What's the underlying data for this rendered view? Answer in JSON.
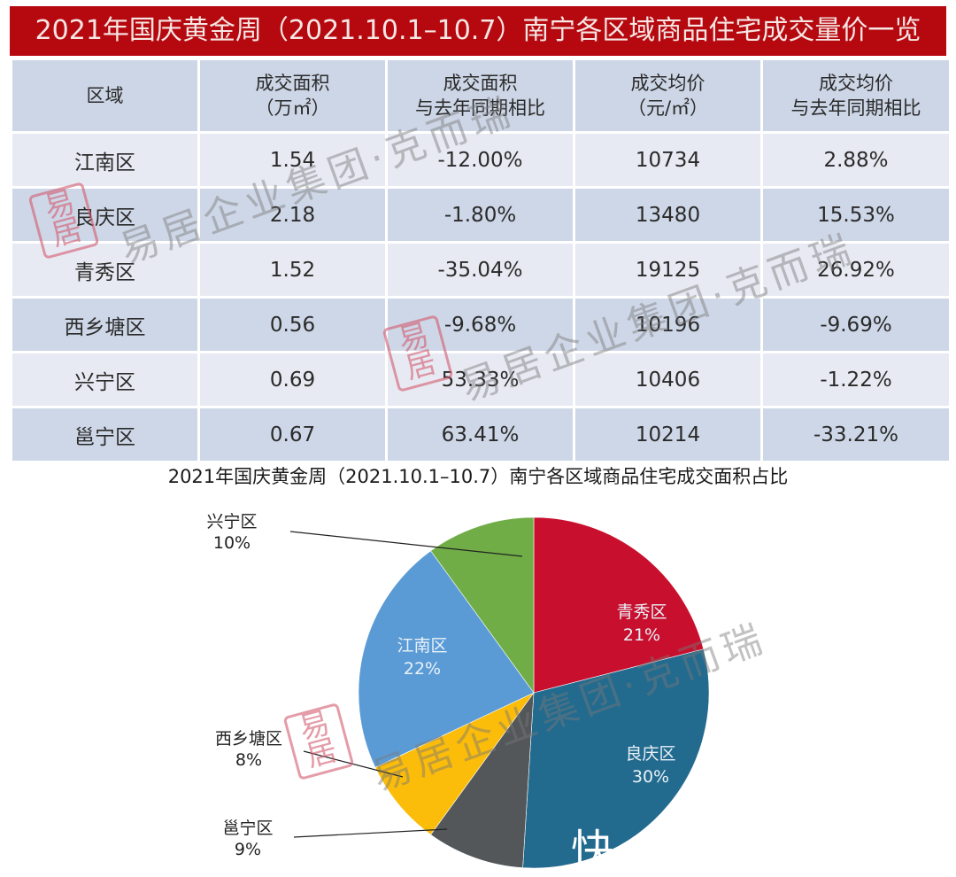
{
  "header": {
    "title": "2021年国庆黄金周（2021.10.1–10.7）南宁各区域商品住宅成交量价一览"
  },
  "table": {
    "columns": [
      {
        "line1": "区域",
        "line2": ""
      },
      {
        "line1": "成交面积",
        "line2": "（万㎡）"
      },
      {
        "line1": "成交面积",
        "line2": "与去年同期相比"
      },
      {
        "line1": "成交均价",
        "line2": "（元/㎡）"
      },
      {
        "line1": "成交均价",
        "line2": "与去年同期相比"
      }
    ],
    "rows": [
      {
        "district": "江南区",
        "area": "1.54",
        "area_yoy": "-12.00%",
        "price": "10734",
        "price_yoy": "2.88%"
      },
      {
        "district": "良庆区",
        "area": "2.18",
        "area_yoy": "-1.80%",
        "price": "13480",
        "price_yoy": "15.53%"
      },
      {
        "district": "青秀区",
        "area": "1.52",
        "area_yoy": "-35.04%",
        "price": "19125",
        "price_yoy": "26.92%"
      },
      {
        "district": "西乡塘区",
        "area": "0.56",
        "area_yoy": "-9.68%",
        "price": "10196",
        "price_yoy": "-9.69%"
      },
      {
        "district": "兴宁区",
        "area": "0.69",
        "area_yoy": "53.33%",
        "price": "10406",
        "price_yoy": "-1.22%"
      },
      {
        "district": "邕宁区",
        "area": "0.67",
        "area_yoy": "63.41%",
        "price": "10214",
        "price_yoy": "-33.21%"
      }
    ]
  },
  "watermark": {
    "text": "易居企业集团·克而瑞",
    "seal": "易居"
  },
  "corner_text": "快",
  "colors": {
    "title_bg": "#b5090f",
    "header_bg": "#cdd6e6",
    "row_light": "#e8eaf3",
    "row_dark": "#ced7e7"
  },
  "chart_data": {
    "type": "pie",
    "title": "2021年国庆黄金周（2021.10.1–10.7）南宁各区域商品住宅成交面积占比",
    "categories": [
      "青秀区",
      "良庆区",
      "邕宁区",
      "西乡塘区",
      "江南区",
      "兴宁区"
    ],
    "values": [
      21,
      30,
      9,
      8,
      22,
      10
    ],
    "labels": [
      "21%",
      "30%",
      "9%",
      "8%",
      "22%",
      "10%"
    ],
    "colors": [
      "#c8102e",
      "#236b8e",
      "#535759",
      "#fbbc0a",
      "#5b9bd5",
      "#70ad47"
    ],
    "start_angle_deg": 0,
    "direction": "clockwise",
    "label_positions": [
      "inside",
      "inside",
      "outside",
      "outside",
      "inside",
      "outside"
    ],
    "legend": "none"
  }
}
